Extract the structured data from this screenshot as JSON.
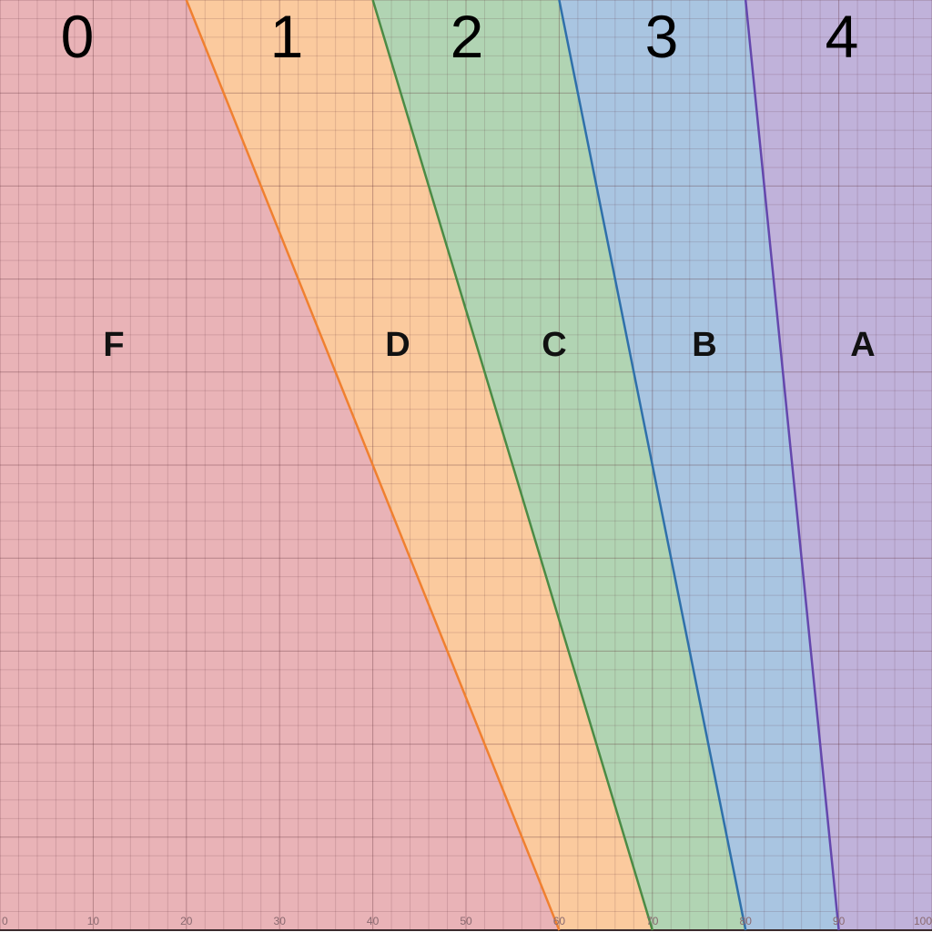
{
  "chart_data": {
    "type": "area",
    "xlim": [
      0,
      100
    ],
    "ylim": [
      0,
      100
    ],
    "grid": true,
    "x_ticks": [
      "0",
      "10",
      "20",
      "30",
      "40",
      "50",
      "60",
      "70",
      "80",
      "90",
      "100"
    ],
    "boundaries": [
      {
        "color": "#f08030",
        "points": [
          [
            20,
            100
          ],
          [
            60,
            0
          ]
        ]
      },
      {
        "color": "#4b8b45",
        "points": [
          [
            40,
            100
          ],
          [
            70,
            0
          ]
        ]
      },
      {
        "color": "#2f70aa",
        "points": [
          [
            60,
            100
          ],
          [
            80,
            0
          ]
        ]
      },
      {
        "color": "#6447ad",
        "points": [
          [
            80,
            100
          ],
          [
            90,
            0
          ]
        ]
      }
    ],
    "regions": [
      {
        "grade": "F",
        "points": "0",
        "color": "#e9b3b7"
      },
      {
        "grade": "D",
        "points": "1",
        "color": "#fbca9e"
      },
      {
        "grade": "C",
        "points": "2",
        "color": "#b1d4b3"
      },
      {
        "grade": "B",
        "points": "3",
        "color": "#a9c5e1"
      },
      {
        "grade": "A",
        "points": "4",
        "color": "#c0b2da"
      }
    ]
  }
}
